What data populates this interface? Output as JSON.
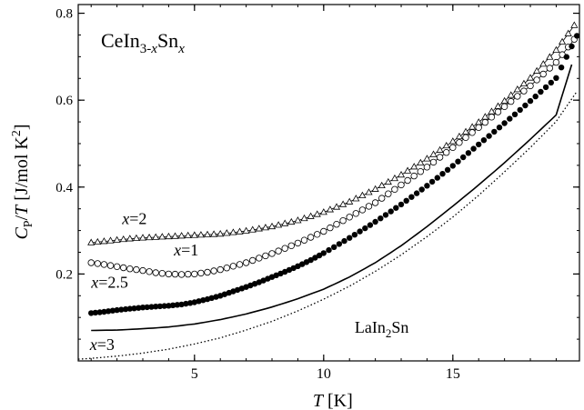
{
  "chart_data": {
    "type": "scatter",
    "title_parts": {
      "base": "CeIn",
      "sub1": "3-",
      "sub1_italic": "x",
      "mid": "Sn",
      "sub2": "x"
    },
    "xlabel": {
      "italic": "T",
      "rest": " [K]"
    },
    "ylabel": {
      "italic1": "C",
      "sub": "P",
      "slash": "/",
      "italic2": "T",
      "rest": " [J/mol K",
      "sup": "2",
      "close": "]"
    },
    "x_ticks": [
      5,
      10,
      15
    ],
    "y_ticks": [
      "0.2",
      "0.4",
      "0.6",
      "0.8"
    ],
    "xlim": [
      0.5,
      19.9
    ],
    "ylim": [
      0.0,
      0.82
    ],
    "x_minor_step": 1,
    "y_minor_step": 0.05,
    "annotations": [
      {
        "id": "x2",
        "italic": "x",
        "text": "=2",
        "at": [
          2.2,
          0.315
        ]
      },
      {
        "id": "x1",
        "italic": "x",
        "text": "=1",
        "at": [
          4.2,
          0.243
        ]
      },
      {
        "id": "x25",
        "italic": "x",
        "text": "=2.5",
        "at": [
          1.0,
          0.168
        ]
      },
      {
        "id": "x3",
        "italic": "x",
        "text": "=3",
        "at": [
          0.95,
          0.025
        ]
      },
      {
        "id": "la",
        "base": "LaIn",
        "sub": "2",
        "rest": "Sn",
        "at": [
          11.2,
          0.065
        ]
      }
    ],
    "series": [
      {
        "name": "x=2",
        "marker": "open-triangle",
        "line": "thin-solid",
        "x": [
          1.0,
          1.5,
          2.0,
          2.5,
          3.0,
          4.0,
          5.0,
          6.0,
          7.0,
          8.0,
          9.0,
          10.0,
          11.0,
          12.0,
          13.0,
          14.0,
          15.0,
          16.0,
          17.0,
          18.0,
          19.0,
          19.7
        ],
        "y": [
          0.272,
          0.275,
          0.278,
          0.281,
          0.283,
          0.286,
          0.289,
          0.292,
          0.299,
          0.309,
          0.323,
          0.342,
          0.366,
          0.395,
          0.428,
          0.465,
          0.505,
          0.549,
          0.598,
          0.651,
          0.715,
          0.772
        ]
      },
      {
        "name": "x=1",
        "marker": "open-circle",
        "line": "thin-solid",
        "x": [
          1.0,
          1.5,
          2.0,
          2.5,
          3.0,
          3.5,
          4.0,
          4.5,
          5.0,
          5.5,
          6.0,
          7.0,
          8.0,
          9.0,
          10.0,
          11.0,
          12.0,
          13.0,
          14.0,
          15.0,
          16.0,
          17.0,
          18.0,
          19.0,
          19.7
        ],
        "y": [
          0.226,
          0.222,
          0.217,
          0.212,
          0.208,
          0.203,
          0.2,
          0.199,
          0.2,
          0.204,
          0.21,
          0.226,
          0.247,
          0.271,
          0.298,
          0.331,
          0.364,
          0.405,
          0.446,
          0.491,
          0.537,
          0.585,
          0.633,
          0.687,
          0.74
        ]
      },
      {
        "name": "x=2.5",
        "marker": "filled-circle",
        "line": "none",
        "x": [
          1.0,
          1.5,
          2.0,
          2.5,
          3.0,
          3.5,
          4.0,
          4.5,
          5.0,
          5.5,
          6.0,
          6.5,
          7.0,
          7.5,
          8.0,
          8.5,
          9.0,
          9.5,
          10.0,
          11.0,
          12.0,
          13.0,
          14.0,
          15.0,
          16.0,
          17.0,
          18.0,
          19.0,
          19.8
        ],
        "y": [
          0.11,
          0.113,
          0.117,
          0.12,
          0.123,
          0.125,
          0.127,
          0.13,
          0.135,
          0.142,
          0.15,
          0.16,
          0.17,
          0.181,
          0.193,
          0.205,
          0.218,
          0.232,
          0.248,
          0.283,
          0.32,
          0.36,
          0.403,
          0.449,
          0.498,
          0.547,
          0.598,
          0.651,
          0.748
        ]
      },
      {
        "name": "x=3",
        "marker": "none",
        "line": "solid",
        "x": [
          1.0,
          2.0,
          3.0,
          4.0,
          5.0,
          6.0,
          7.0,
          8.0,
          9.0,
          10.0,
          11.0,
          12.0,
          13.0,
          14.0,
          15.0,
          16.0,
          17.0,
          18.0,
          19.0,
          19.6
        ],
        "y": [
          0.07,
          0.071,
          0.074,
          0.078,
          0.085,
          0.095,
          0.108,
          0.124,
          0.143,
          0.165,
          0.193,
          0.226,
          0.265,
          0.309,
          0.356,
          0.405,
          0.456,
          0.51,
          0.566,
          0.682
        ]
      },
      {
        "name": "LaIn2Sn",
        "marker": "none",
        "line": "dotted",
        "x": [
          0.5,
          1.0,
          2.0,
          3.0,
          4.0,
          5.0,
          6.0,
          7.0,
          8.0,
          9.0,
          10.0,
          11.0,
          12.0,
          13.0,
          14.0,
          15.0,
          16.0,
          17.0,
          18.0,
          19.0,
          19.8
        ],
        "y": [
          0.004,
          0.006,
          0.011,
          0.018,
          0.027,
          0.039,
          0.053,
          0.071,
          0.091,
          0.115,
          0.142,
          0.172,
          0.206,
          0.244,
          0.286,
          0.331,
          0.381,
          0.435,
          0.491,
          0.551,
          0.62
        ]
      }
    ],
    "grid": false,
    "legend": "none"
  }
}
